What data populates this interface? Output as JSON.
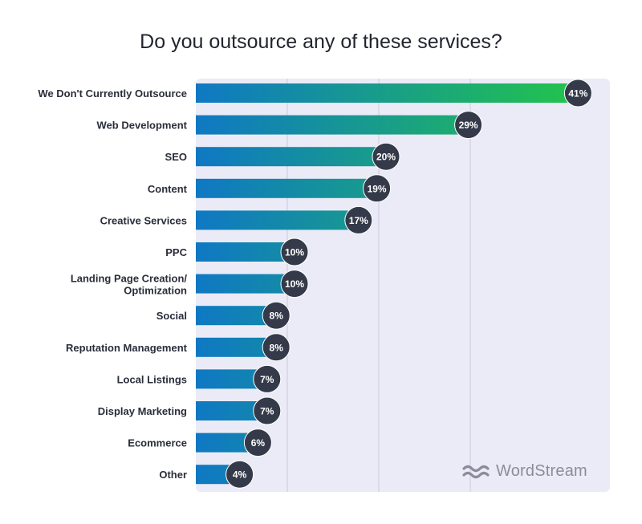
{
  "chart_data": {
    "type": "bar",
    "orientation": "horizontal",
    "title": "Do you outsource any of these services?",
    "categories": [
      "We Don't Currently Outsource",
      "Web Development",
      "SEO",
      "Content",
      "Creative Services",
      "PPC",
      "Landing Page Creation/ Optimization",
      "Social",
      "Reputation Management",
      "Local Listings",
      "Display Marketing",
      "Ecommerce",
      "Other"
    ],
    "values": [
      41,
      29,
      20,
      19,
      17,
      10,
      10,
      8,
      8,
      7,
      7,
      6,
      4
    ],
    "value_labels": [
      "41%",
      "29%",
      "20%",
      "19%",
      "17%",
      "10%",
      "10%",
      "8%",
      "8%",
      "7%",
      "7%",
      "6%",
      "4%"
    ],
    "unit": "%",
    "xlim": [
      0,
      45
    ],
    "gridlines": [
      10,
      20,
      30
    ],
    "grid": true,
    "xlabel": "",
    "ylabel": ""
  },
  "colors": {
    "plot_background": "#ebebf7",
    "gridline": "#c9c9dc",
    "bar_start": "#0f78c4",
    "bar_end": "#22c24e",
    "badge": "#343a49",
    "brand_gray": "#8a8d99"
  },
  "brand": {
    "name": "WordStream",
    "icon": "wordstream-wave-logo"
  }
}
